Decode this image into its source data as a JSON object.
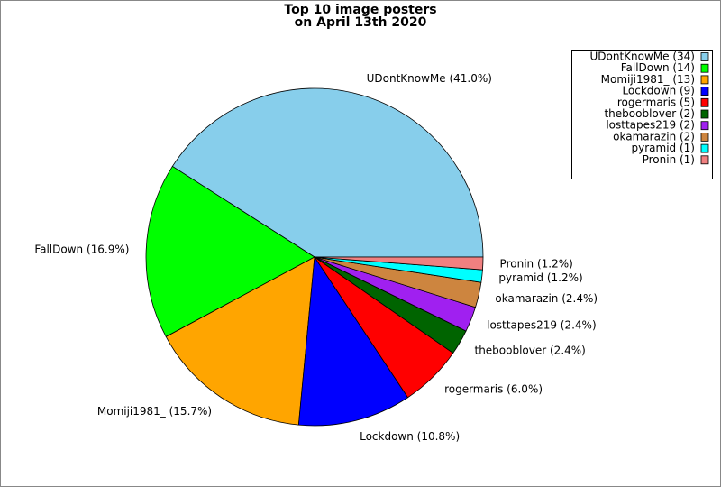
{
  "chart_data": {
    "type": "pie",
    "title": [
      "Top 10 image posters",
      "on April 13th 2020"
    ],
    "categories": [
      "UDontKnowMe",
      "FallDown",
      "Momiji1981_",
      "Lockdown",
      "rogermaris",
      "thebooblover",
      "losttapes219",
      "okamarazin",
      "pyramid",
      "Pronin"
    ],
    "values": [
      34,
      14,
      13,
      9,
      5,
      2,
      2,
      2,
      1,
      1
    ],
    "colors": [
      "#87ceeb",
      "#00ff00",
      "#ffa500",
      "#0000ff",
      "#ff0000",
      "#006400",
      "#a020f0",
      "#cd853f",
      "#00ffff",
      "#f08080"
    ],
    "slice_labels": [
      "UDontKnowMe (41.0%)",
      "FallDown (16.9%)",
      "Momiji1981_ (15.7%)",
      "Lockdown (10.8%)",
      "rogermaris (6.0%)",
      "thebooblover (2.4%)",
      "losttapes219 (2.4%)",
      "okamarazin (2.4%)",
      "pyramid (1.2%)",
      "Pronin (1.2%)"
    ],
    "legend_labels": [
      "UDontKnowMe (34)",
      "FallDown (14)",
      "Momiji1981_ (13)",
      "Lockdown (9)",
      "rogermaris (5)",
      "thebooblover (2)",
      "losttapes219 (2)",
      "okamarazin (2)",
      "pyramid (1)",
      "Pronin (1)"
    ],
    "legend": "upper right"
  }
}
